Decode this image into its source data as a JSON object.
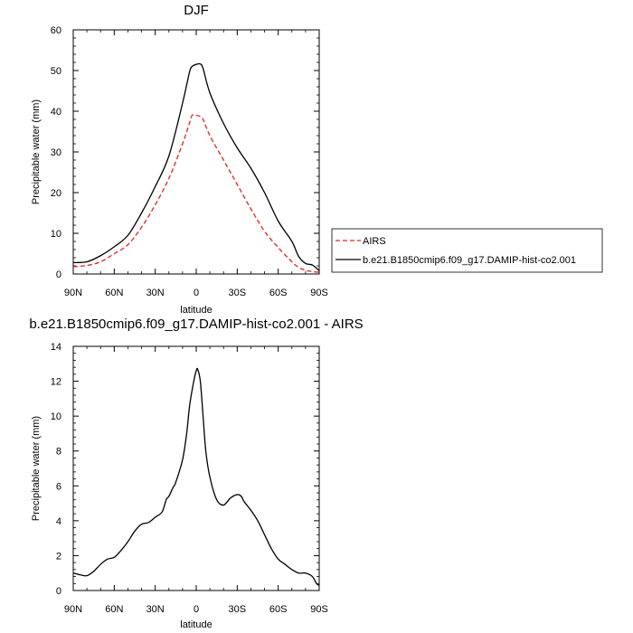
{
  "chart_data": [
    {
      "type": "line",
      "title": "DJF",
      "xlabel": "latitude",
      "ylabel": "Precipitable water (mm)",
      "xlim": [
        -90,
        90
      ],
      "ylim": [
        0,
        60
      ],
      "x_ticks": [
        "90N",
        "60N",
        "30N",
        "0",
        "30S",
        "60S",
        "90S"
      ],
      "y_ticks": [
        "0",
        "10",
        "20",
        "30",
        "40",
        "50",
        "60"
      ],
      "grid": false,
      "legend_position": "right",
      "series": [
        {
          "name": "AIRS",
          "color": "#e8201e",
          "dash": "dashed",
          "x": [
            -90,
            -80,
            -70,
            -60,
            -50,
            -40,
            -30,
            -20,
            -10,
            -5,
            -3,
            0,
            3,
            5,
            10,
            20,
            30,
            40,
            50,
            60,
            70,
            75,
            80,
            85,
            90
          ],
          "y": [
            1.8,
            2.1,
            3.0,
            5.0,
            7.2,
            11.5,
            17.0,
            23.5,
            32.0,
            37.0,
            39.0,
            39.0,
            38.7,
            38.0,
            34.0,
            28.0,
            22.0,
            16.0,
            10.5,
            6.5,
            3.0,
            1.6,
            0.9,
            0.6,
            0.4
          ]
        },
        {
          "name": "b.e21.B1850cmip6.f09_g17.DAMIP-hist-co2.001",
          "color": "#000000",
          "dash": "solid",
          "x": [
            -90,
            -80,
            -70,
            -60,
            -50,
            -40,
            -30,
            -20,
            -10,
            -5,
            -3,
            0,
            3,
            5,
            10,
            20,
            30,
            40,
            50,
            60,
            70,
            75,
            80,
            85,
            90
          ],
          "y": [
            2.8,
            3.0,
            4.5,
            6.7,
            9.5,
            15.0,
            21.5,
            29.0,
            42.0,
            49.5,
            51.0,
            51.5,
            51.6,
            50.5,
            44.5,
            37.0,
            31.0,
            26.0,
            20.0,
            13.0,
            8.0,
            4.3,
            2.6,
            2.2,
            0.8
          ]
        }
      ]
    },
    {
      "type": "line",
      "title": "b.e21.B1850cmip6.f09_g17.DAMIP-hist-co2.001 - AIRS",
      "xlabel": "latitude",
      "ylabel": "Precipitable water (mm)",
      "xlim": [
        -90,
        90
      ],
      "ylim": [
        0,
        14
      ],
      "x_ticks": [
        "90N",
        "60N",
        "30N",
        "0",
        "30S",
        "60S",
        "90S"
      ],
      "y_ticks": [
        "0",
        "2",
        "4",
        "6",
        "8",
        "10",
        "12",
        "14"
      ],
      "grid": false,
      "series": [
        {
          "color": "#000000",
          "dash": "solid",
          "x": [
            -90,
            -85,
            -80,
            -75,
            -70,
            -65,
            -60,
            -55,
            -50,
            -45,
            -40,
            -35,
            -30,
            -25,
            -22,
            -20,
            -17,
            -15,
            -10,
            -7,
            -5,
            -3,
            -1,
            0,
            1,
            3,
            5,
            7,
            10,
            15,
            20,
            25,
            30,
            33,
            35,
            40,
            45,
            50,
            55,
            60,
            65,
            70,
            75,
            80,
            85,
            88,
            90
          ],
          "y": [
            1.0,
            0.9,
            0.85,
            1.1,
            1.5,
            1.8,
            1.9,
            2.3,
            2.8,
            3.4,
            3.8,
            3.9,
            4.2,
            4.5,
            5.2,
            5.4,
            5.9,
            6.2,
            7.5,
            9.0,
            10.5,
            11.5,
            12.3,
            12.6,
            12.7,
            12.0,
            10.0,
            8.0,
            6.5,
            5.2,
            4.9,
            5.3,
            5.5,
            5.4,
            5.1,
            4.6,
            4.0,
            3.2,
            2.4,
            1.8,
            1.5,
            1.2,
            1.0,
            1.0,
            0.8,
            0.4,
            0.3
          ]
        }
      ]
    }
  ]
}
